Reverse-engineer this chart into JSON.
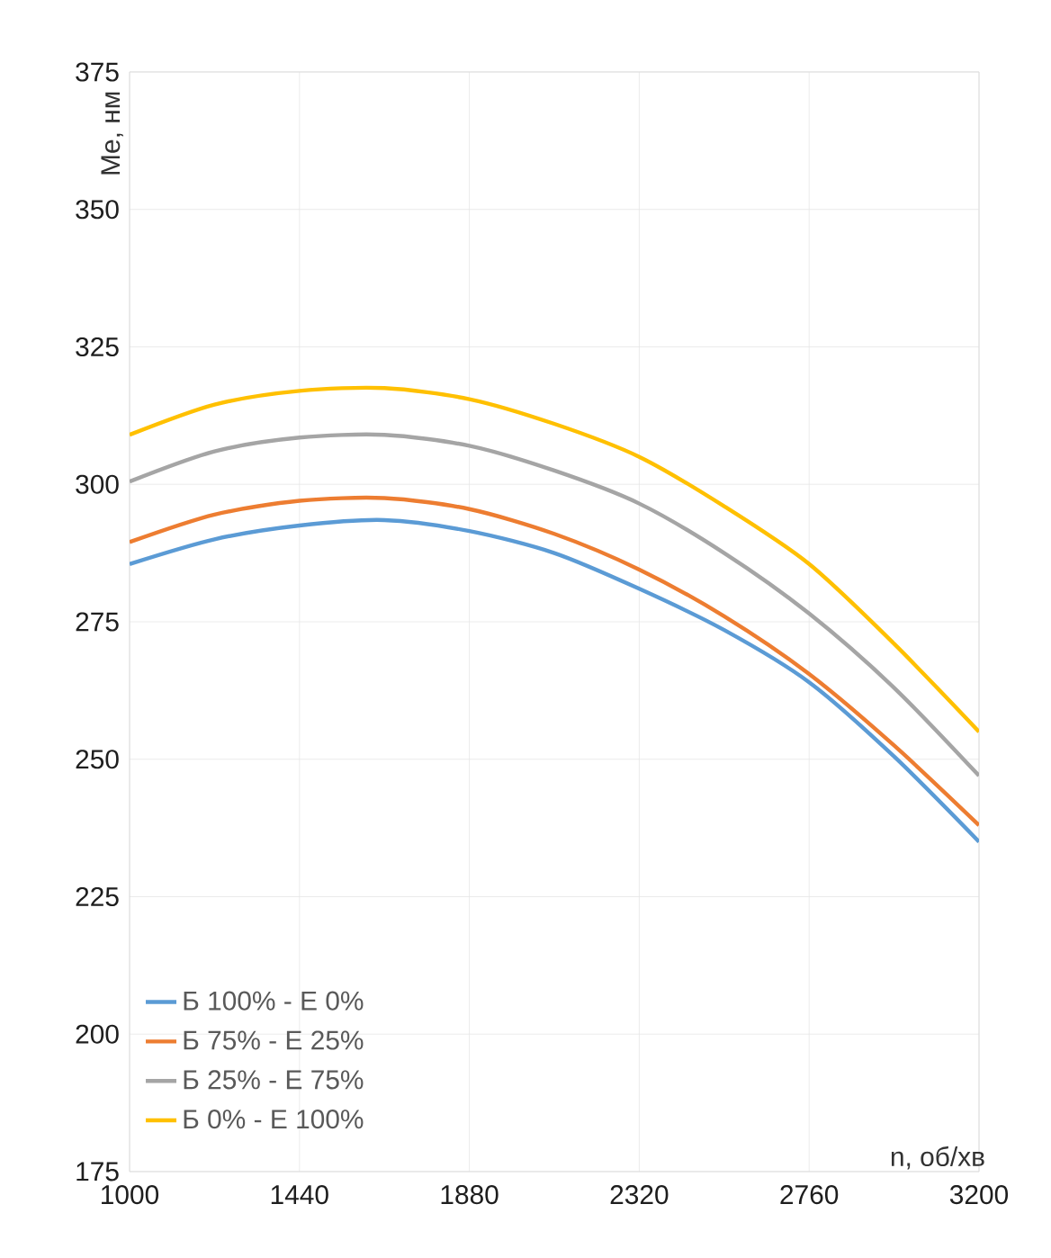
{
  "chart_data": {
    "type": "line",
    "xlabel": "n, об/хв",
    "ylabel": "Me, нм",
    "x": [
      1000,
      1220,
      1440,
      1660,
      1880,
      2100,
      2320,
      2540,
      2760,
      2980,
      3200
    ],
    "series": [
      {
        "name": "Б 100% - Е 0%",
        "color": "#5b9bd5",
        "values": [
          285.5,
          290,
          292.5,
          293.5,
          291.5,
          287.5,
          281,
          273.5,
          264,
          250.5,
          235
        ]
      },
      {
        "name": "Б 75% - Е 25%",
        "color": "#ed7d31",
        "values": [
          289.5,
          294.5,
          297,
          297.5,
          295.5,
          291,
          284.5,
          276,
          265.5,
          252.5,
          238
        ]
      },
      {
        "name": "Б 25% - Е 75%",
        "color": "#a5a5a5",
        "values": [
          300.5,
          306,
          308.5,
          309,
          307,
          302.5,
          296.5,
          287.5,
          276.5,
          263,
          247
        ]
      },
      {
        "name": "Б 0% - Е 100%",
        "color": "#ffc000",
        "values": [
          309,
          314.5,
          317,
          317.5,
          315.5,
          311,
          305,
          296,
          285.5,
          271,
          255
        ]
      }
    ],
    "xlim": [
      1000,
      3200
    ],
    "xticks": [
      1000,
      1440,
      1880,
      2320,
      2760,
      3200
    ],
    "ylim": [
      175,
      375
    ],
    "yticks": [
      175,
      200,
      225,
      250,
      275,
      300,
      325,
      350,
      375
    ],
    "grid": true,
    "legend": "bottom left",
    "marker": "none",
    "line_style": "solid"
  }
}
